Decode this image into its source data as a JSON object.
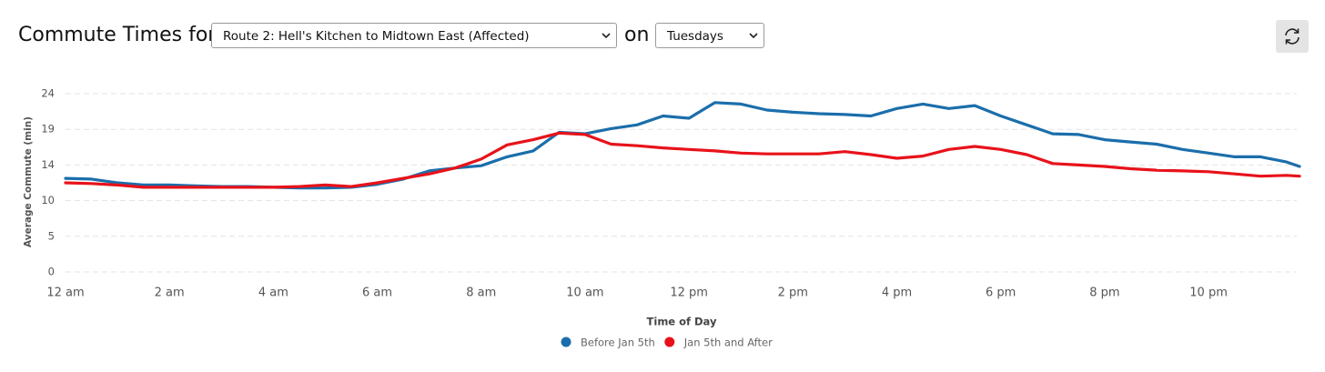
{
  "header": {
    "title": "Commute Times for",
    "route": "Route 2: Hell's Kitchen to Midtown East (Affected)",
    "connector": "on",
    "day": "Tuesdays"
  },
  "chart_data": {
    "type": "line",
    "xlabel": "Time of Day",
    "ylabel": "Average Commute (min)",
    "x": [
      0,
      0.5,
      1,
      1.5,
      2,
      2.5,
      3,
      3.5,
      4,
      4.5,
      5,
      5.5,
      6,
      6.5,
      7,
      7.5,
      8,
      8.5,
      9,
      9.5,
      10,
      10.5,
      11,
      11.5,
      12,
      12.5,
      13,
      13.5,
      14,
      14.5,
      15,
      15.5,
      16,
      16.5,
      17,
      17.5,
      18,
      18.5,
      19,
      19.5,
      20,
      20.5,
      21,
      21.5,
      22,
      22.5,
      23,
      23.5,
      23.75
    ],
    "series": [
      {
        "name": "Before Jan 5th",
        "color": "#1b6eab",
        "values": [
          12.6,
          12.5,
          12.0,
          11.7,
          11.7,
          11.6,
          11.5,
          11.5,
          11.4,
          11.3,
          11.3,
          11.4,
          11.8,
          12.5,
          13.6,
          14.0,
          14.3,
          15.5,
          16.3,
          18.8,
          18.6,
          19.3,
          19.8,
          21.0,
          20.7,
          22.8,
          22.6,
          21.8,
          21.5,
          21.3,
          21.2,
          21.0,
          22.0,
          22.6,
          22.0,
          22.4,
          21.0,
          19.8,
          18.6,
          18.5,
          17.8,
          17.5,
          17.2,
          16.5,
          16.0,
          15.5,
          15.5,
          14.8,
          14.2
        ]
      },
      {
        "name": "Jan 5th and After",
        "color": "#e8121a",
        "values": [
          12.0,
          11.9,
          11.7,
          11.4,
          11.4,
          11.4,
          11.4,
          11.4,
          11.4,
          11.5,
          11.7,
          11.5,
          12.0,
          12.6,
          13.2,
          14.0,
          15.2,
          17.1,
          17.8,
          18.7,
          18.5,
          17.2,
          17.0,
          16.7,
          16.5,
          16.3,
          16.0,
          15.9,
          15.9,
          15.9,
          16.2,
          15.8,
          15.3,
          15.6,
          16.5,
          16.9,
          16.5,
          15.8,
          14.6,
          14.4,
          14.2,
          13.9,
          13.7,
          13.6,
          13.5,
          13.2,
          12.9,
          13.0,
          12.9
        ]
      }
    ],
    "xlim": [
      0,
      23.75
    ],
    "xticks": [
      {
        "value": 0,
        "label": "12 am"
      },
      {
        "value": 2,
        "label": "2 am"
      },
      {
        "value": 4,
        "label": "4 am"
      },
      {
        "value": 6,
        "label": "6 am"
      },
      {
        "value": 8,
        "label": "8 am"
      },
      {
        "value": 10,
        "label": "10 am"
      },
      {
        "value": 12,
        "label": "12 pm"
      },
      {
        "value": 14,
        "label": "2 pm"
      },
      {
        "value": 16,
        "label": "4 pm"
      },
      {
        "value": 18,
        "label": "6 pm"
      },
      {
        "value": 20,
        "label": "8 pm"
      },
      {
        "value": 22,
        "label": "10 pm"
      }
    ],
    "ylim": [
      0,
      24
    ],
    "yticks": [
      0,
      {
        "value": 4.8,
        "label": "5"
      },
      {
        "value": 9.6,
        "label": "10"
      },
      {
        "value": 14.4,
        "label": "14"
      },
      {
        "value": 19.2,
        "label": "19"
      },
      24
    ],
    "grid": true,
    "legend": "bottom"
  }
}
